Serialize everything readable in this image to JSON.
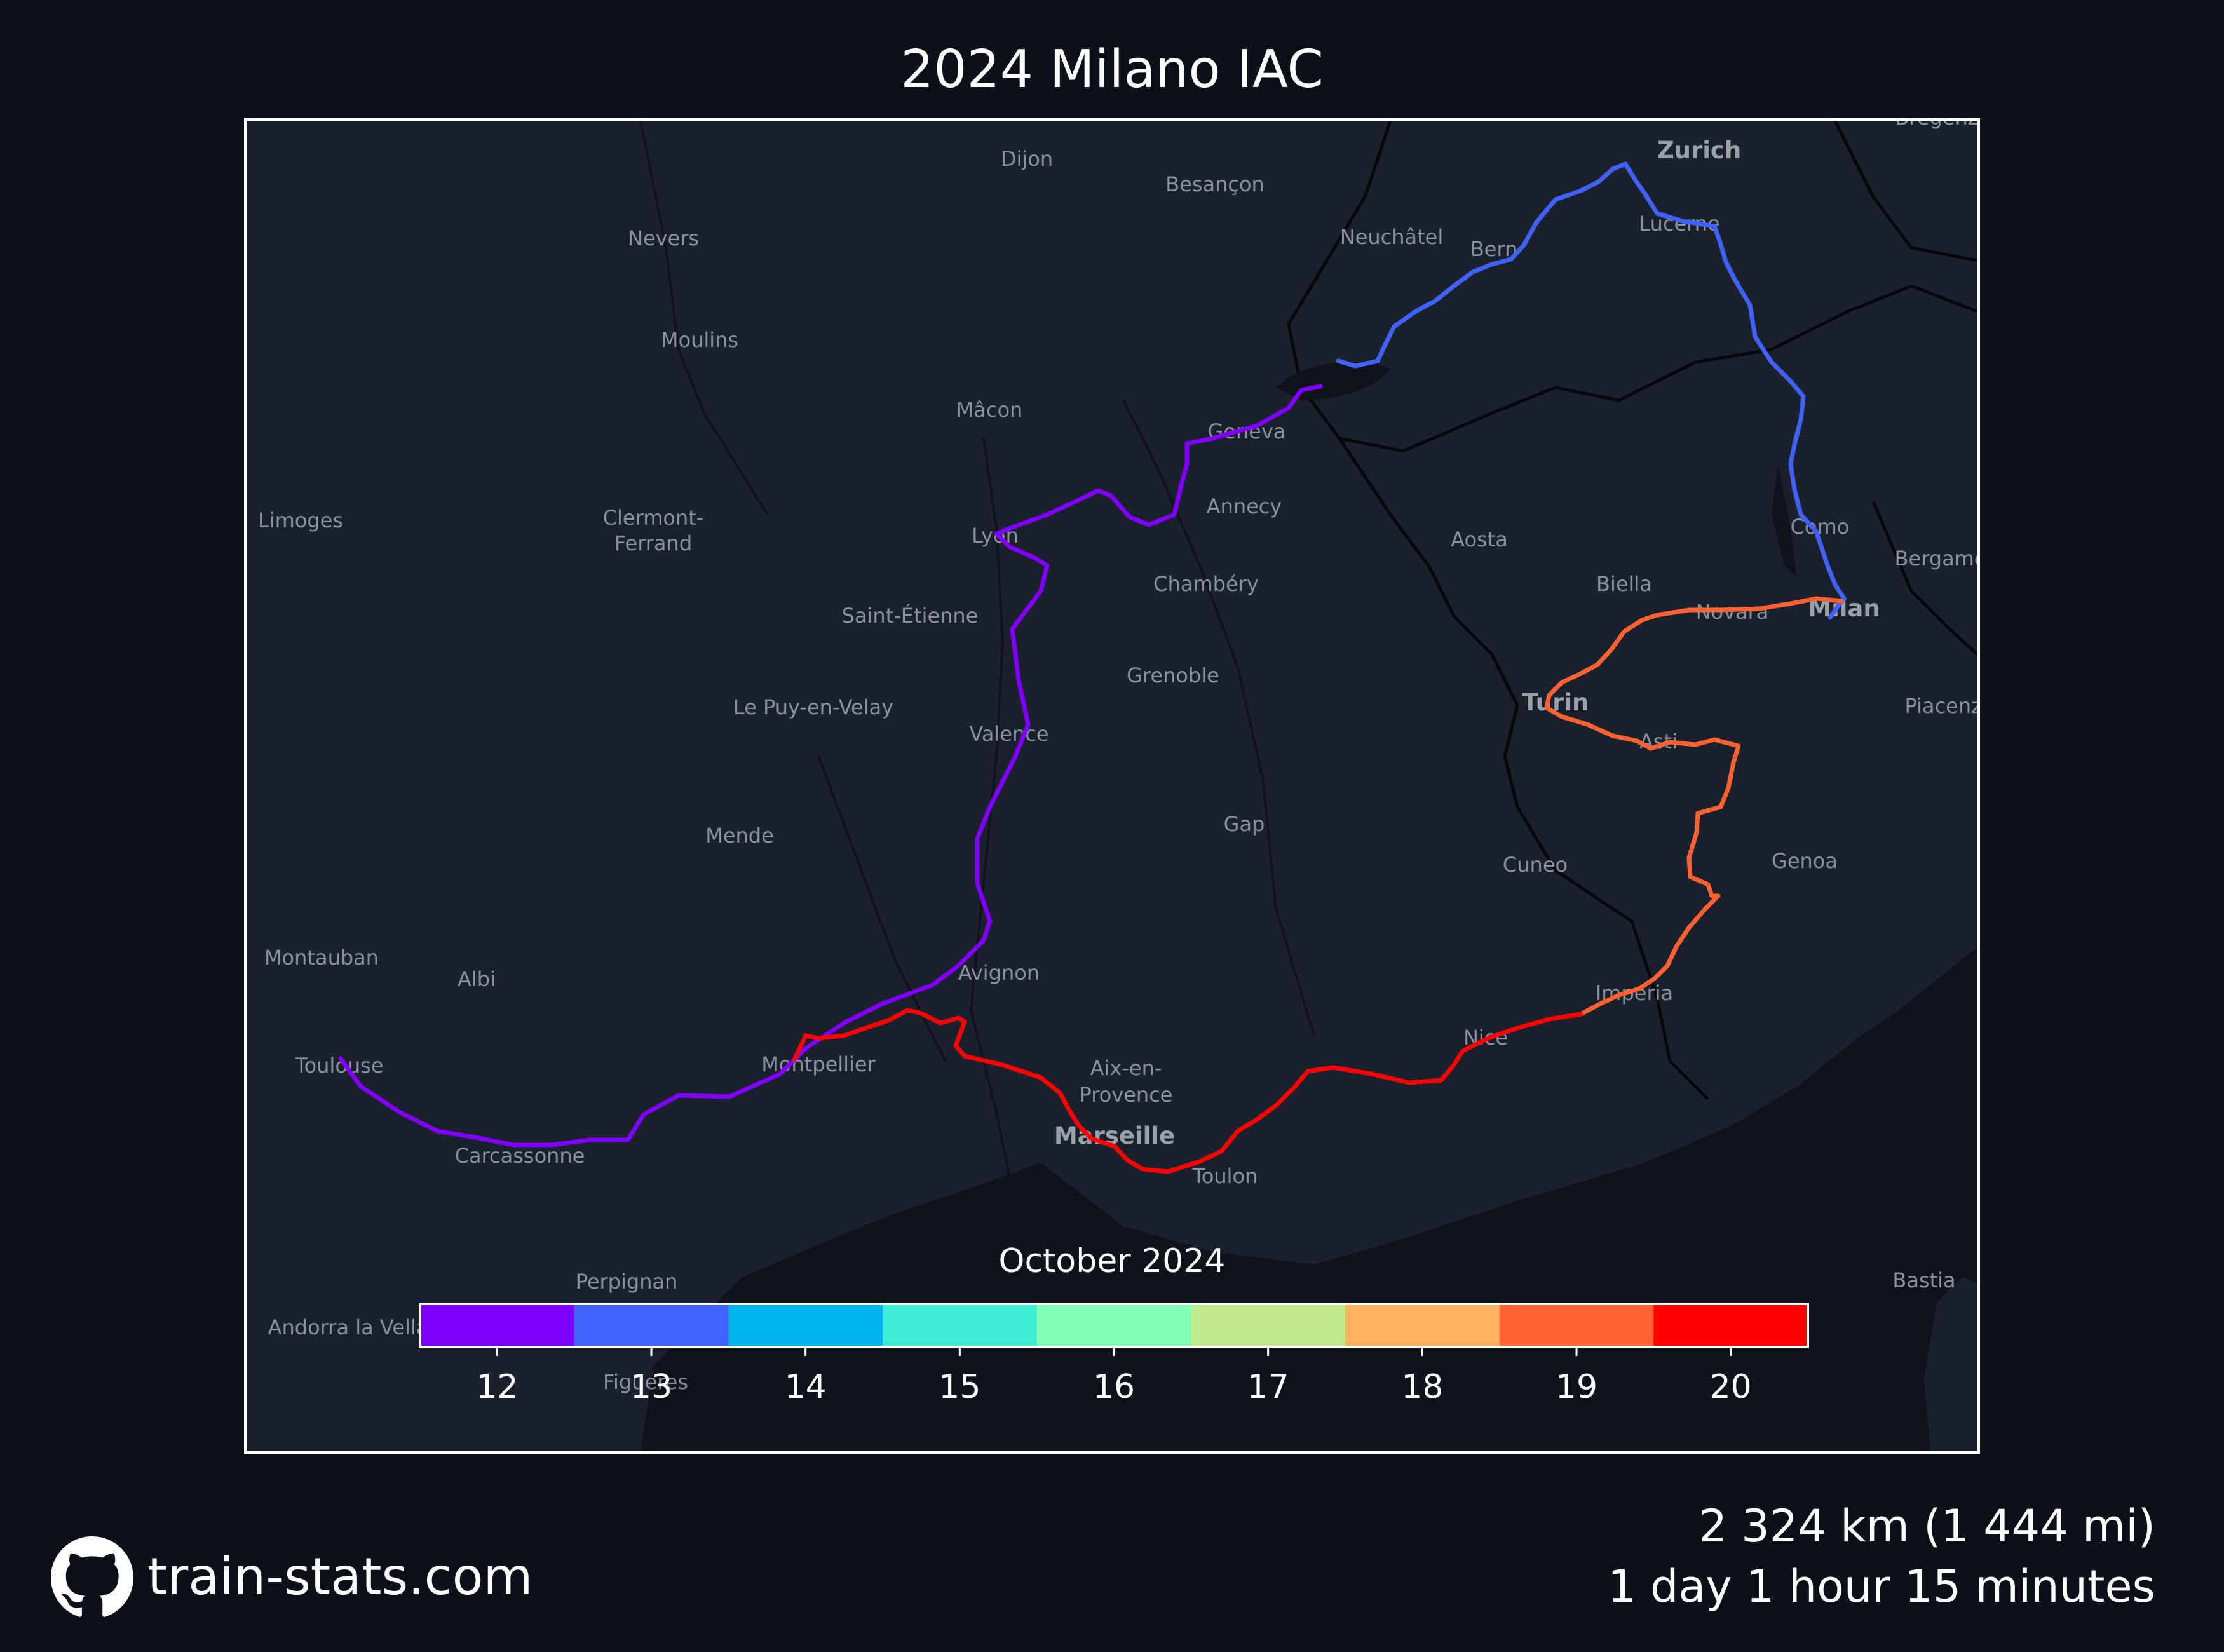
{
  "title": "2024 Milano IAC",
  "colorbar": {
    "title": "October 2024",
    "ticks": [
      "12",
      "13",
      "14",
      "15",
      "16",
      "17",
      "18",
      "19",
      "20"
    ],
    "colors": [
      "#7f00ff",
      "#4062fa",
      "#00b5eb",
      "#40ecd3",
      "#80feb3",
      "#c0eb8d",
      "#ffb360",
      "#ff6230",
      "#ff0000"
    ]
  },
  "route_colors": {
    "day12": "#7f00ff",
    "day13": "#4062fa",
    "day19": "#ff6230",
    "day20": "#ff0000"
  },
  "cities": [
    {
      "name": "Dijon"
    },
    {
      "name": "Besançon"
    },
    {
      "name": "Zurich"
    },
    {
      "name": "Bregenz"
    },
    {
      "name": "Nevers"
    },
    {
      "name": "Neuchâtel"
    },
    {
      "name": "Bern"
    },
    {
      "name": "Lucerne"
    },
    {
      "name": "Moulins"
    },
    {
      "name": "Mâcon"
    },
    {
      "name": "Geneva"
    },
    {
      "name": "Annecy"
    },
    {
      "name": "Limoges"
    },
    {
      "name": "Clermont-"
    },
    {
      "name": "Ferrand"
    },
    {
      "name": "Lyon"
    },
    {
      "name": "Aosta"
    },
    {
      "name": "Como"
    },
    {
      "name": "Bergamo"
    },
    {
      "name": "Chambéry"
    },
    {
      "name": "Biella"
    },
    {
      "name": "Novara"
    },
    {
      "name": "Milan"
    },
    {
      "name": "Saint-Étienne"
    },
    {
      "name": "Grenoble"
    },
    {
      "name": "Turin"
    },
    {
      "name": "Piacenza"
    },
    {
      "name": "Le Puy-en-Velay"
    },
    {
      "name": "Valence"
    },
    {
      "name": "Asti"
    },
    {
      "name": "Mende"
    },
    {
      "name": "Gap"
    },
    {
      "name": "Cuneo"
    },
    {
      "name": "Genoa"
    },
    {
      "name": "Montauban"
    },
    {
      "name": "Albi"
    },
    {
      "name": "Avignon"
    },
    {
      "name": "Imperia"
    },
    {
      "name": "Toulouse"
    },
    {
      "name": "Montpellier"
    },
    {
      "name": "Aix-en-"
    },
    {
      "name": "Provence"
    },
    {
      "name": "Nice"
    },
    {
      "name": "Marseille"
    },
    {
      "name": "Carcassonne"
    },
    {
      "name": "Toulon"
    },
    {
      "name": "Perpignan"
    },
    {
      "name": "Bastia"
    },
    {
      "name": "Andorra la Vella"
    },
    {
      "name": "Figueres"
    }
  ],
  "footer": {
    "site": "train-stats.com",
    "distance": "2 324 km (1 444 mi)",
    "duration": "1 day 1 hour 15 minutes"
  }
}
